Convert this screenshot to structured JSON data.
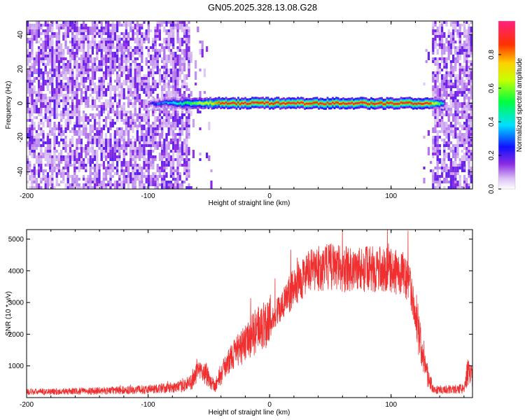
{
  "figure": {
    "title": "GN05.2025.328.13.08.G28"
  },
  "chart_data": [
    {
      "type": "heatmap",
      "xlabel": "Height of straight line (km)",
      "ylabel": "Frequency (Hz)",
      "xlim": [
        -200,
        167
      ],
      "ylim": [
        -50,
        48
      ],
      "x_ticks": [
        "-200",
        "-100",
        "0",
        "100"
      ],
      "y_ticks": [
        "-40",
        "-20",
        "0",
        "20",
        "40"
      ],
      "colorbar": {
        "label": "Normalized spectral amplitude",
        "range": [
          0,
          1
        ],
        "ticks": [
          "0.0",
          "0.2",
          "0.4",
          "0.6",
          "0.8"
        ],
        "colors": [
          "#ffffff",
          "#e8d5f8",
          "#8a2be2",
          "#0000ff",
          "#00ffff",
          "#00ff00",
          "#ffff00",
          "#ff8c00",
          "#ff0000",
          "#ff1493"
        ]
      },
      "regions": [
        {
          "name": "noise",
          "x_range": [
            -200,
            -66
          ],
          "amplitude": 0.15
        },
        {
          "name": "sparse",
          "x_range": [
            -66,
            -48
          ],
          "amplitude": 0.05
        },
        {
          "name": "noise",
          "x_range": [
            133,
            167
          ],
          "amplitude": 0.15
        }
      ],
      "signal_line": {
        "frequency": 0,
        "x_range": [
          -100,
          142
        ],
        "amplitude_profile": [
          {
            "x": -100,
            "amp": 0.2
          },
          {
            "x": -85,
            "amp": 0.35
          },
          {
            "x": -70,
            "amp": 0.5
          },
          {
            "x": -50,
            "amp": 0.7
          },
          {
            "x": -40,
            "amp": 0.9
          },
          {
            "x": 130,
            "amp": 0.9
          },
          {
            "x": 142,
            "amp": 0.4
          }
        ]
      },
      "grid": false
    },
    {
      "type": "line",
      "xlabel": "Height of straight line (km)",
      "ylabel": "SNR (10 * v/v)",
      "xlim": [
        -200,
        167
      ],
      "ylim": [
        0,
        5300
      ],
      "x_ticks": [
        "-200",
        "-100",
        "0",
        "100"
      ],
      "y_ticks": [
        "1000",
        "2000",
        "3000",
        "4000",
        "5000"
      ],
      "color": "#f03030",
      "envelope": [
        {
          "x": -200,
          "y": 180
        },
        {
          "x": -150,
          "y": 200
        },
        {
          "x": -100,
          "y": 260
        },
        {
          "x": -75,
          "y": 330
        },
        {
          "x": -66,
          "y": 450
        },
        {
          "x": -58,
          "y": 900
        },
        {
          "x": -52,
          "y": 750
        },
        {
          "x": -45,
          "y": 350
        },
        {
          "x": -38,
          "y": 900
        },
        {
          "x": -30,
          "y": 1350
        },
        {
          "x": -20,
          "y": 1700
        },
        {
          "x": -10,
          "y": 2150
        },
        {
          "x": 0,
          "y": 2450
        },
        {
          "x": 10,
          "y": 2850
        },
        {
          "x": 20,
          "y": 3500
        },
        {
          "x": 30,
          "y": 3900
        },
        {
          "x": 40,
          "y": 4050
        },
        {
          "x": 50,
          "y": 4150
        },
        {
          "x": 60,
          "y": 4050
        },
        {
          "x": 70,
          "y": 4050
        },
        {
          "x": 80,
          "y": 4050
        },
        {
          "x": 90,
          "y": 4050
        },
        {
          "x": 100,
          "y": 4000
        },
        {
          "x": 110,
          "y": 3900
        },
        {
          "x": 115,
          "y": 3600
        },
        {
          "x": 120,
          "y": 2700
        },
        {
          "x": 125,
          "y": 1500
        },
        {
          "x": 130,
          "y": 700
        },
        {
          "x": 135,
          "y": 250
        },
        {
          "x": 150,
          "y": 250
        },
        {
          "x": 160,
          "y": 300
        },
        {
          "x": 163,
          "y": 800
        },
        {
          "x": 167,
          "y": 600
        }
      ],
      "grid": false
    }
  ]
}
